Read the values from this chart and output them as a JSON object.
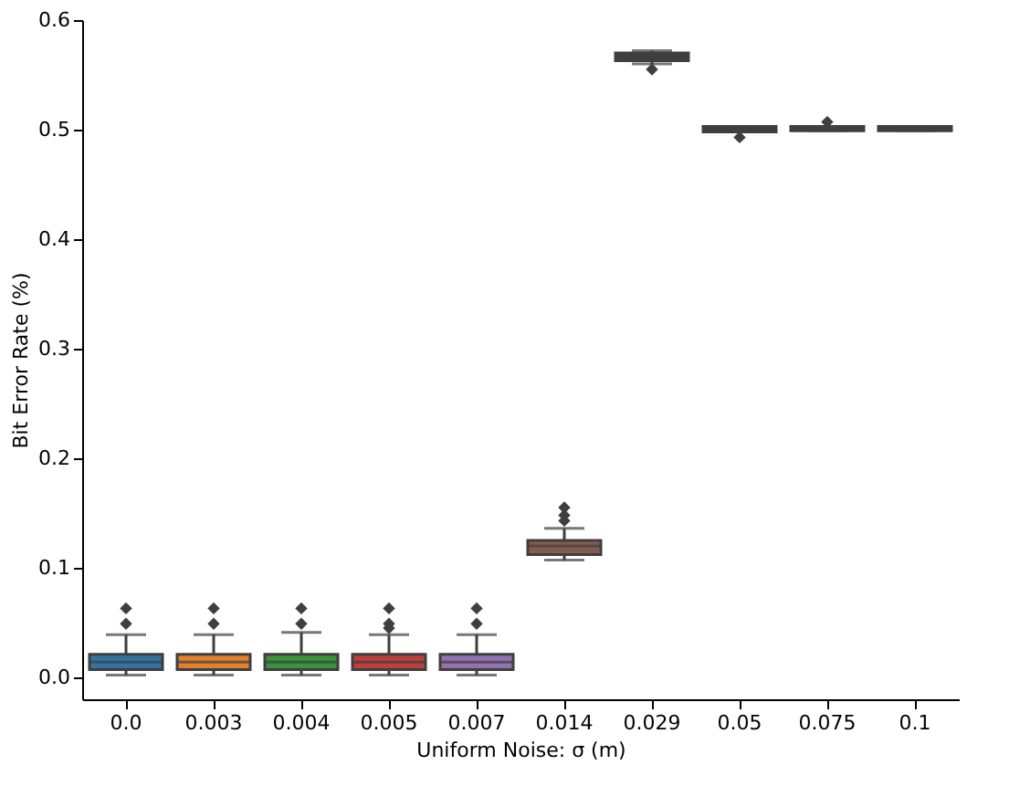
{
  "chart_data": {
    "type": "box",
    "xlabel": "Uniform Noise: σ (m)",
    "ylabel": "Bit Error Rate (%)",
    "categories": [
      "0.0",
      "0.003",
      "0.004",
      "0.005",
      "0.007",
      "0.014",
      "0.029",
      "0.05",
      "0.075",
      "0.1"
    ],
    "colors": [
      "#3274a1",
      "#e1812c",
      "#3a923a",
      "#c03d3e",
      "#9372b2",
      "#845b53",
      "#3f3f3f",
      "#3f3f3f",
      "#3f3f3f",
      "#3f3f3f"
    ],
    "boxes": [
      {
        "low": 0.002,
        "q1": 0.007,
        "median": 0.014,
        "q3": 0.021,
        "high": 0.039,
        "outliers": [
          0.049,
          0.063
        ]
      },
      {
        "low": 0.002,
        "q1": 0.007,
        "median": 0.014,
        "q3": 0.021,
        "high": 0.039,
        "outliers": [
          0.049,
          0.063
        ]
      },
      {
        "low": 0.002,
        "q1": 0.007,
        "median": 0.014,
        "q3": 0.021,
        "high": 0.041,
        "outliers": [
          0.049,
          0.063
        ]
      },
      {
        "low": 0.002,
        "q1": 0.007,
        "median": 0.014,
        "q3": 0.021,
        "high": 0.039,
        "outliers": [
          0.045,
          0.049,
          0.063
        ]
      },
      {
        "low": 0.002,
        "q1": 0.007,
        "median": 0.014,
        "q3": 0.021,
        "high": 0.039,
        "outliers": [
          0.049,
          0.063
        ]
      },
      {
        "low": 0.107,
        "q1": 0.112,
        "median": 0.12,
        "q3": 0.125,
        "high": 0.136,
        "outliers": [
          0.143,
          0.148,
          0.155
        ]
      },
      {
        "low": 0.56,
        "q1": 0.563,
        "median": 0.567,
        "q3": 0.57,
        "high": 0.572,
        "outliers": [
          0.555
        ]
      },
      {
        "low": 0.498,
        "q1": 0.498,
        "median": 0.5,
        "q3": 0.503,
        "high": 0.503,
        "outliers": [
          0.493
        ]
      },
      {
        "low": 0.499,
        "q1": 0.499,
        "median": 0.5,
        "q3": 0.503,
        "high": 0.503,
        "outliers": [
          0.507
        ]
      },
      {
        "low": 0.499,
        "q1": 0.499,
        "median": 0.5,
        "q3": 0.503,
        "high": 0.503
      }
    ],
    "ylim": [
      -0.02,
      0.6
    ],
    "yticks": [
      {
        "value": 0,
        "label": "0.0"
      },
      {
        "value": 0.1,
        "label": "0.1"
      },
      {
        "value": 0.2,
        "label": "0.2"
      },
      {
        "value": 0.3,
        "label": "0.3"
      },
      {
        "value": 0.4,
        "label": "0.4"
      },
      {
        "value": 0.5,
        "label": "0.5"
      },
      {
        "value": 0.6,
        "label": "0.6"
      }
    ],
    "grid": false,
    "legend": false,
    "marker": "diamond"
  }
}
